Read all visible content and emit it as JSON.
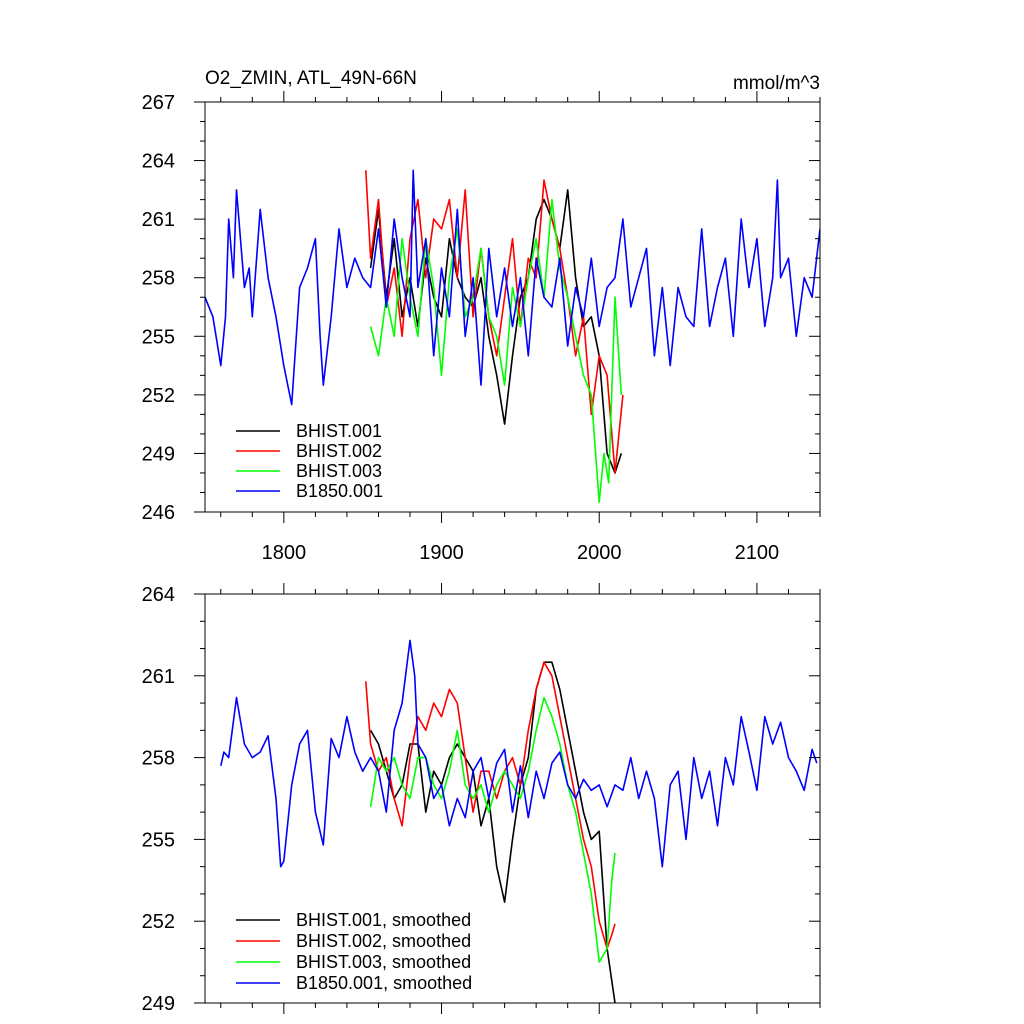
{
  "chart_data": [
    {
      "type": "line",
      "title": "O2_ZMIN, ATL_49N-66N",
      "units": "mmol/m^3",
      "xlim": [
        1750,
        2140
      ],
      "ylim": [
        246,
        267
      ],
      "xticks": [
        1800,
        1900,
        2000,
        2100
      ],
      "xtick_labels": [
        "1800",
        "1900",
        "2000",
        "2100"
      ],
      "yticks": [
        246,
        249,
        252,
        255,
        258,
        261,
        264,
        267
      ],
      "ytick_labels": [
        "246",
        "249",
        "252",
        "255",
        "258",
        "261",
        "264",
        "267"
      ],
      "legend_position": "bottom-left",
      "series": [
        {
          "name": "BHIST.001",
          "color": "#000000",
          "x": [
            1855,
            1860,
            1865,
            1870,
            1875,
            1880,
            1885,
            1890,
            1895,
            1900,
            1905,
            1910,
            1915,
            1920,
            1925,
            1930,
            1935,
            1940,
            1945,
            1950,
            1955,
            1960,
            1965,
            1970,
            1975,
            1980,
            1985,
            1990,
            1995,
            2000,
            2005,
            2010,
            2014
          ],
          "y": [
            258.5,
            261.5,
            257,
            260,
            256,
            258,
            255.5,
            259,
            257,
            256,
            260,
            258,
            257,
            256.5,
            258,
            255,
            253,
            250.5,
            254,
            257,
            258,
            261,
            262,
            261,
            259.5,
            262.5,
            258,
            255.5,
            256,
            254,
            249,
            248,
            249
          ]
        },
        {
          "name": "BHIST.002",
          "color": "#ff0000",
          "x": [
            1852,
            1855,
            1860,
            1865,
            1870,
            1875,
            1880,
            1885,
            1890,
            1895,
            1900,
            1905,
            1910,
            1915,
            1920,
            1925,
            1930,
            1935,
            1940,
            1945,
            1950,
            1955,
            1960,
            1965,
            1970,
            1975,
            1980,
            1985,
            1990,
            1995,
            2000,
            2005,
            2010,
            2015
          ],
          "y": [
            263.5,
            259,
            262,
            256.5,
            258.5,
            255,
            260,
            262,
            258,
            261,
            260.5,
            262,
            258,
            262.5,
            256,
            259.5,
            256,
            254,
            257,
            260,
            255.5,
            259,
            258,
            263,
            261,
            259.5,
            257,
            254,
            256,
            251,
            254,
            253,
            248,
            252
          ]
        },
        {
          "name": "BHIST.003",
          "color": "#00ff00",
          "x": [
            1855,
            1860,
            1865,
            1870,
            1875,
            1880,
            1885,
            1890,
            1895,
            1900,
            1905,
            1910,
            1915,
            1920,
            1925,
            1930,
            1935,
            1940,
            1945,
            1950,
            1955,
            1960,
            1965,
            1970,
            1975,
            1980,
            1985,
            1990,
            1995,
            2000,
            2003,
            2006,
            2010,
            2014
          ],
          "y": [
            255.5,
            254,
            257,
            255,
            260,
            257,
            255,
            260,
            257.5,
            253,
            258,
            260.5,
            256,
            257,
            259.5,
            256,
            255,
            252.5,
            257.5,
            255.5,
            258,
            260,
            257,
            262,
            258.5,
            257,
            255,
            253,
            252,
            246.5,
            249,
            247.5,
            257,
            252
          ]
        },
        {
          "name": "B1850.001",
          "color": "#0000ff",
          "x": [
            1750,
            1755,
            1760,
            1763,
            1765,
            1768,
            1770,
            1775,
            1778,
            1780,
            1785,
            1790,
            1795,
            1800,
            1805,
            1810,
            1815,
            1820,
            1823,
            1825,
            1830,
            1835,
            1840,
            1845,
            1850,
            1855,
            1860,
            1865,
            1870,
            1875,
            1880,
            1882,
            1885,
            1890,
            1895,
            1900,
            1905,
            1910,
            1915,
            1920,
            1925,
            1930,
            1935,
            1940,
            1945,
            1950,
            1955,
            1960,
            1965,
            1970,
            1975,
            1980,
            1985,
            1990,
            1995,
            2000,
            2005,
            2010,
            2015,
            2020,
            2025,
            2030,
            2035,
            2040,
            2045,
            2050,
            2055,
            2060,
            2065,
            2070,
            2075,
            2080,
            2085,
            2090,
            2095,
            2100,
            2105,
            2110,
            2113,
            2115,
            2120,
            2125,
            2130,
            2135,
            2140
          ],
          "y": [
            257,
            256,
            253.5,
            256,
            261,
            258,
            262.5,
            257.5,
            258.5,
            256,
            261.5,
            258,
            256,
            253.5,
            251.5,
            257.5,
            258.5,
            260,
            255,
            252.5,
            256,
            260.5,
            257.5,
            259,
            258,
            257.5,
            260.5,
            256.5,
            261,
            258,
            256,
            263.5,
            257.5,
            260,
            254,
            258.5,
            256,
            261.5,
            255,
            258,
            252.5,
            259.5,
            256,
            258.5,
            255.5,
            258,
            254,
            259,
            257,
            256.5,
            259,
            254.5,
            257.5,
            256,
            259,
            255.5,
            257.5,
            258,
            261,
            256.5,
            258,
            259.5,
            254,
            257.5,
            253.5,
            257.5,
            256,
            255.5,
            260.5,
            255.5,
            257.5,
            259,
            255,
            261,
            257.5,
            260,
            255.5,
            258,
            263,
            258,
            259,
            255,
            258,
            257,
            260.5
          ]
        }
      ]
    },
    {
      "type": "line",
      "xlim": [
        1750,
        2140
      ],
      "ylim": [
        249,
        264
      ],
      "xticks": [
        1800,
        1900,
        2000,
        2100
      ],
      "yticks": [
        249,
        252,
        255,
        258,
        261,
        264
      ],
      "ytick_labels": [
        "249",
        "252",
        "255",
        "258",
        "261",
        "264"
      ],
      "legend_position": "bottom-left",
      "series": [
        {
          "name": "BHIST.001, smoothed",
          "color": "#000000",
          "x": [
            1855,
            1860,
            1865,
            1870,
            1875,
            1880,
            1885,
            1890,
            1895,
            1900,
            1905,
            1910,
            1915,
            1920,
            1925,
            1930,
            1935,
            1940,
            1945,
            1950,
            1955,
            1960,
            1965,
            1970,
            1975,
            1980,
            1985,
            1990,
            1995,
            2000,
            2005,
            2010
          ],
          "y": [
            259,
            258.5,
            257.5,
            256.5,
            257,
            258.5,
            258.5,
            256,
            257.5,
            257,
            258,
            258.5,
            258,
            257.5,
            255.5,
            256.5,
            254,
            252.7,
            255,
            257,
            258,
            260.5,
            261.5,
            261.5,
            260.5,
            259,
            257.5,
            256,
            255,
            255.3,
            251,
            249
          ]
        },
        {
          "name": "BHIST.002, smoothed",
          "color": "#ff0000",
          "x": [
            1852,
            1855,
            1860,
            1865,
            1870,
            1875,
            1880,
            1885,
            1890,
            1895,
            1900,
            1905,
            1910,
            1915,
            1920,
            1925,
            1930,
            1935,
            1940,
            1945,
            1950,
            1955,
            1960,
            1965,
            1970,
            1975,
            1980,
            1985,
            1990,
            1995,
            2000,
            2005,
            2008,
            2010
          ],
          "y": [
            260.8,
            258.5,
            257.5,
            258,
            256.5,
            255.5,
            258,
            259.5,
            259,
            260,
            259.5,
            260.5,
            260,
            258,
            256,
            257.5,
            257.5,
            256.5,
            257.5,
            258,
            257,
            259,
            260.5,
            261.5,
            261,
            259.5,
            258,
            256.5,
            255,
            254,
            252,
            251,
            251.5,
            251.9
          ]
        },
        {
          "name": "BHIST.003, smoothed",
          "color": "#00ff00",
          "x": [
            1855,
            1860,
            1865,
            1870,
            1875,
            1880,
            1885,
            1890,
            1895,
            1900,
            1905,
            1910,
            1915,
            1920,
            1925,
            1930,
            1935,
            1940,
            1945,
            1950,
            1955,
            1960,
            1965,
            1970,
            1975,
            1980,
            1985,
            1990,
            1995,
            2000,
            2005,
            2008,
            2010
          ],
          "y": [
            256.2,
            258,
            257.5,
            258,
            257,
            256.5,
            258,
            258,
            257,
            256.5,
            257.5,
            259,
            257,
            256.5,
            257,
            256,
            257,
            257.5,
            257,
            256.5,
            257.5,
            259,
            260.2,
            259.5,
            258.5,
            257,
            256,
            254.5,
            253,
            250.5,
            251,
            253.5,
            254.5
          ]
        },
        {
          "name": "B1850.001, smoothed",
          "color": "#0000ff",
          "x": [
            1760,
            1762,
            1765,
            1770,
            1775,
            1780,
            1785,
            1790,
            1795,
            1798,
            1800,
            1805,
            1810,
            1815,
            1820,
            1825,
            1830,
            1835,
            1840,
            1845,
            1850,
            1855,
            1860,
            1865,
            1870,
            1875,
            1880,
            1883,
            1885,
            1890,
            1895,
            1900,
            1905,
            1910,
            1915,
            1920,
            1925,
            1930,
            1935,
            1940,
            1945,
            1950,
            1955,
            1960,
            1965,
            1970,
            1975,
            1980,
            1985,
            1990,
            1995,
            2000,
            2005,
            2010,
            2015,
            2020,
            2025,
            2030,
            2035,
            2040,
            2045,
            2050,
            2055,
            2060,
            2065,
            2070,
            2075,
            2080,
            2085,
            2090,
            2095,
            2100,
            2105,
            2110,
            2115,
            2120,
            2125,
            2130,
            2135,
            2138
          ],
          "y": [
            257.7,
            258.2,
            258,
            260.2,
            258.5,
            258,
            258.2,
            258.8,
            256.5,
            254,
            254.2,
            257,
            258.5,
            259,
            256,
            254.8,
            258.7,
            258,
            259.5,
            258.2,
            257.5,
            258,
            257.5,
            256,
            259,
            260,
            262.3,
            261,
            258.5,
            258,
            256.5,
            257,
            255.5,
            256.5,
            255.8,
            257.5,
            258,
            256.5,
            257.8,
            258.3,
            256,
            257.7,
            255.8,
            257.5,
            256.5,
            257.8,
            258.2,
            257,
            256.5,
            257.2,
            256.8,
            257,
            256.2,
            257,
            256.8,
            258,
            256.5,
            257.5,
            256.5,
            254,
            257,
            257.5,
            255,
            258,
            256.5,
            257.5,
            255.5,
            258,
            257,
            259.5,
            258.2,
            256.8,
            259.5,
            258.5,
            259.3,
            258,
            257.5,
            256.8,
            258.3,
            257.8
          ]
        }
      ]
    }
  ]
}
